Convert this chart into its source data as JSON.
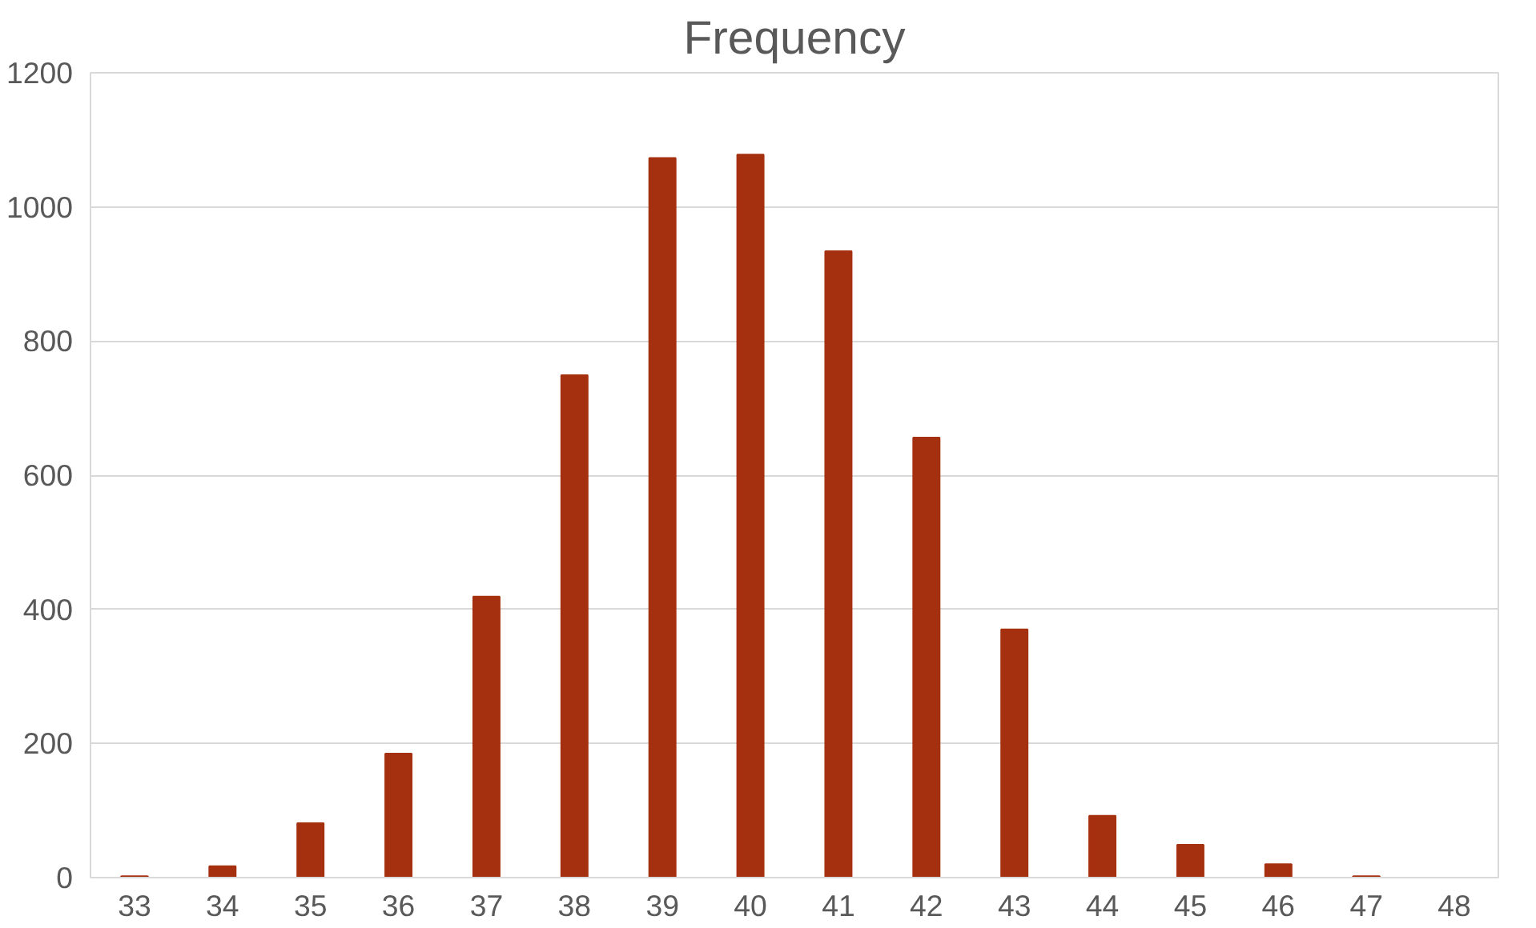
{
  "chart_data": {
    "type": "bar",
    "title": "Frequency",
    "categories": [
      "33",
      "34",
      "35",
      "36",
      "37",
      "38",
      "39",
      "40",
      "41",
      "42",
      "43",
      "44",
      "45",
      "46",
      "47",
      "48"
    ],
    "values": [
      2,
      17,
      81,
      185,
      419,
      749,
      1073,
      1078,
      934,
      656,
      370,
      92,
      49,
      20,
      2,
      0
    ],
    "color": "#a5300f",
    "ylim": [
      0,
      1200
    ],
    "yticks": [
      0,
      200,
      400,
      600,
      800,
      1000,
      1200
    ],
    "grid": "y"
  }
}
